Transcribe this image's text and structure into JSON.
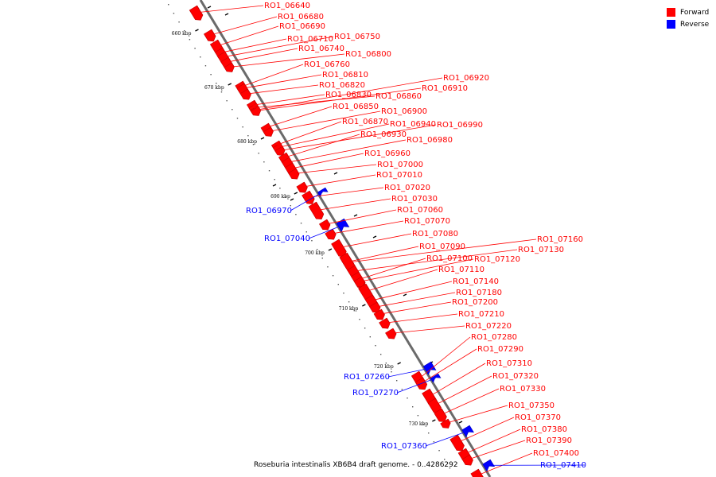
{
  "legend": {
    "items": [
      {
        "label": "Forward",
        "color": "#ff0000"
      },
      {
        "label": "Reverse",
        "color": "#0000ff"
      }
    ]
  },
  "colors": {
    "forward": "#ff0000",
    "reverse": "#0000ff",
    "backbone": "#999999",
    "tick": "#000000"
  },
  "genome_label": "Roseburia intestinalis XB6B4 draft genome. - 0..4286292",
  "ticks": [
    {
      "label": "660 kbp"
    },
    {
      "label": "670 kbp"
    },
    {
      "label": "680 kbp"
    },
    {
      "label": "690 kbp"
    },
    {
      "label": "700 kbp"
    },
    {
      "label": "710 kbp"
    },
    {
      "label": "720 kbp"
    },
    {
      "label": "730 kbp"
    }
  ],
  "genes": [
    {
      "id": "RO1_06640",
      "strand": "forward"
    },
    {
      "id": "RO1_06680",
      "strand": "forward"
    },
    {
      "id": "RO1_06690",
      "strand": "forward"
    },
    {
      "id": "RO1_06710",
      "strand": "forward"
    },
    {
      "id": "RO1_06750",
      "strand": "forward"
    },
    {
      "id": "RO1_06740",
      "strand": "forward"
    },
    {
      "id": "RO1_06800",
      "strand": "forward"
    },
    {
      "id": "RO1_06760",
      "strand": "forward"
    },
    {
      "id": "RO1_06810",
      "strand": "forward"
    },
    {
      "id": "RO1_06820",
      "strand": "forward"
    },
    {
      "id": "RO1_06830",
      "strand": "forward"
    },
    {
      "id": "RO1_06860",
      "strand": "forward"
    },
    {
      "id": "RO1_06920",
      "strand": "forward"
    },
    {
      "id": "RO1_06910",
      "strand": "forward"
    },
    {
      "id": "RO1_06850",
      "strand": "forward"
    },
    {
      "id": "RO1_06900",
      "strand": "forward"
    },
    {
      "id": "RO1_06870",
      "strand": "forward"
    },
    {
      "id": "RO1_06940",
      "strand": "forward"
    },
    {
      "id": "RO1_06990",
      "strand": "forward"
    },
    {
      "id": "RO1_06930",
      "strand": "forward"
    },
    {
      "id": "RO1_06980",
      "strand": "forward"
    },
    {
      "id": "RO1_06960",
      "strand": "forward"
    },
    {
      "id": "RO1_07000",
      "strand": "forward"
    },
    {
      "id": "RO1_07010",
      "strand": "forward"
    },
    {
      "id": "RO1_07020",
      "strand": "forward"
    },
    {
      "id": "RO1_07030",
      "strand": "forward"
    },
    {
      "id": "RO1_06970",
      "strand": "reverse"
    },
    {
      "id": "RO1_07060",
      "strand": "forward"
    },
    {
      "id": "RO1_07070",
      "strand": "forward"
    },
    {
      "id": "RO1_07040",
      "strand": "reverse"
    },
    {
      "id": "RO1_07080",
      "strand": "forward"
    },
    {
      "id": "RO1_07160",
      "strand": "forward"
    },
    {
      "id": "RO1_07090",
      "strand": "forward"
    },
    {
      "id": "RO1_07130",
      "strand": "forward"
    },
    {
      "id": "RO1_07100",
      "strand": "forward"
    },
    {
      "id": "RO1_07120",
      "strand": "forward"
    },
    {
      "id": "RO1_07110",
      "strand": "forward"
    },
    {
      "id": "RO1_07140",
      "strand": "forward"
    },
    {
      "id": "RO1_07180",
      "strand": "forward"
    },
    {
      "id": "RO1_07200",
      "strand": "forward"
    },
    {
      "id": "RO1_07210",
      "strand": "forward"
    },
    {
      "id": "RO1_07220",
      "strand": "forward"
    },
    {
      "id": "RO1_07280",
      "strand": "forward"
    },
    {
      "id": "RO1_07290",
      "strand": "forward"
    },
    {
      "id": "RO1_07310",
      "strand": "forward"
    },
    {
      "id": "RO1_07260",
      "strand": "reverse"
    },
    {
      "id": "RO1_07320",
      "strand": "forward"
    },
    {
      "id": "RO1_07270",
      "strand": "reverse"
    },
    {
      "id": "RO1_07330",
      "strand": "forward"
    },
    {
      "id": "RO1_07350",
      "strand": "forward"
    },
    {
      "id": "RO1_07370",
      "strand": "forward"
    },
    {
      "id": "RO1_07380",
      "strand": "forward"
    },
    {
      "id": "RO1_07390",
      "strand": "forward"
    },
    {
      "id": "RO1_07360",
      "strand": "reverse"
    },
    {
      "id": "RO1_07400",
      "strand": "forward"
    },
    {
      "id": "RO1_07410",
      "strand": "reverse"
    }
  ]
}
